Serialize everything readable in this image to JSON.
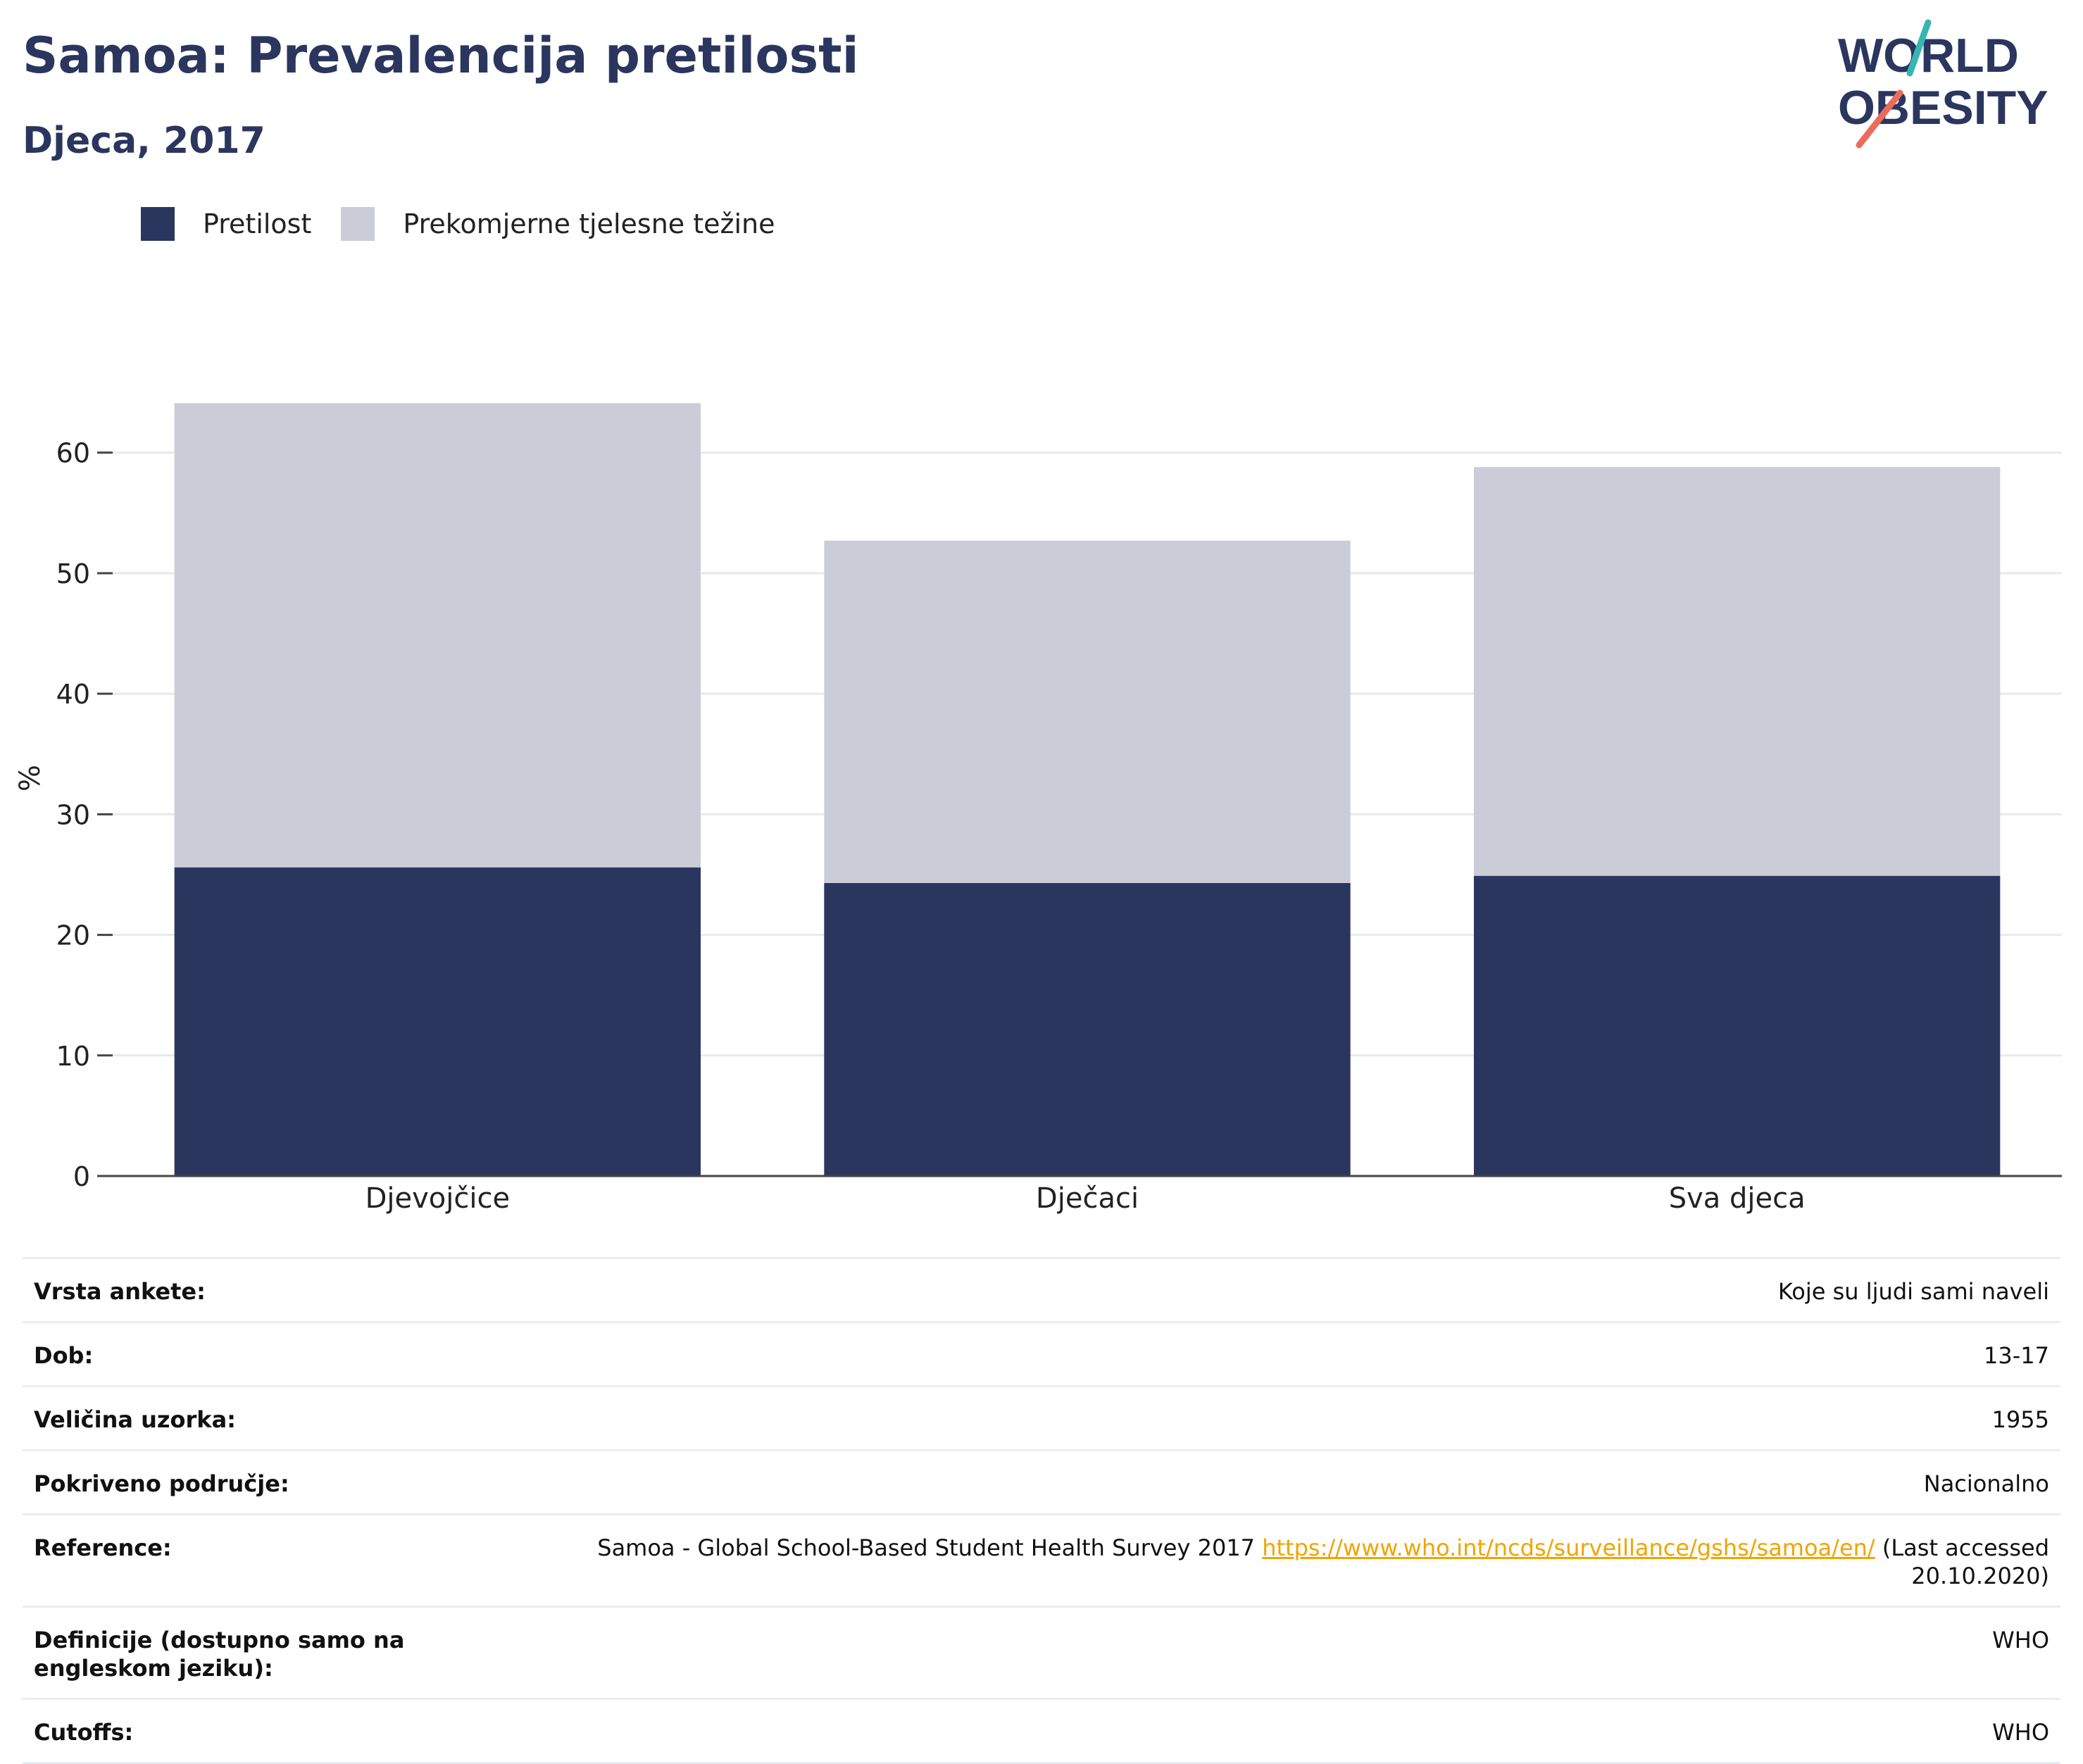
{
  "title": "Samoa: Prevalencija pretilosti",
  "subtitle": "Djeca, 2017",
  "logo": {
    "line1": "WORLD",
    "line2": "OBESITY",
    "colors": [
      "#2b365f",
      "#36b6b1",
      "#ec6c5a"
    ]
  },
  "legend": [
    {
      "label": "Pretilost",
      "color": "#2b365f"
    },
    {
      "label": "Prekomjerne tjelesne težine",
      "color": "#cacdd8"
    }
  ],
  "chart_data": {
    "type": "bar",
    "stacked": true,
    "categories": [
      "Djevojčice",
      "Dječaci",
      "Sva djeca"
    ],
    "series": [
      {
        "name": "Pretilost",
        "values": [
          25.6,
          24.3,
          24.9
        ],
        "color": "#2b365f"
      },
      {
        "name": "Prekomjerne tjelesne težine",
        "values": [
          38.5,
          28.4,
          33.9
        ],
        "color": "#cacdd8"
      }
    ],
    "ylabel": "%",
    "ylim": [
      0,
      66
    ],
    "yticks": [
      0,
      10,
      20,
      30,
      40,
      50,
      60
    ],
    "grid": true,
    "legend_position": "top-left"
  },
  "info": {
    "survey_type": {
      "label": "Vrsta ankete:",
      "value": "Koje su ljudi sami naveli"
    },
    "age": {
      "label": "Dob:",
      "value": "13-17"
    },
    "sample": {
      "label": "Veličina uzorka:",
      "value": "1955"
    },
    "coverage": {
      "label": "Pokriveno područje:",
      "value": "Nacionalno"
    },
    "reference": {
      "label": "Reference:",
      "text": "Samoa - Global School-Based Student Health Survey 2017",
      "link": "https://www.who.int/ncds/surveillance/gshs/samoa/en/",
      "suffix": "(Last accessed 20.10.2020)"
    },
    "definitions": {
      "label": "Definicije (dostupno samo na engleskom jeziku):",
      "value": "WHO"
    },
    "cutoffs": {
      "label": "Cutoffs:",
      "value": "WHO"
    }
  }
}
